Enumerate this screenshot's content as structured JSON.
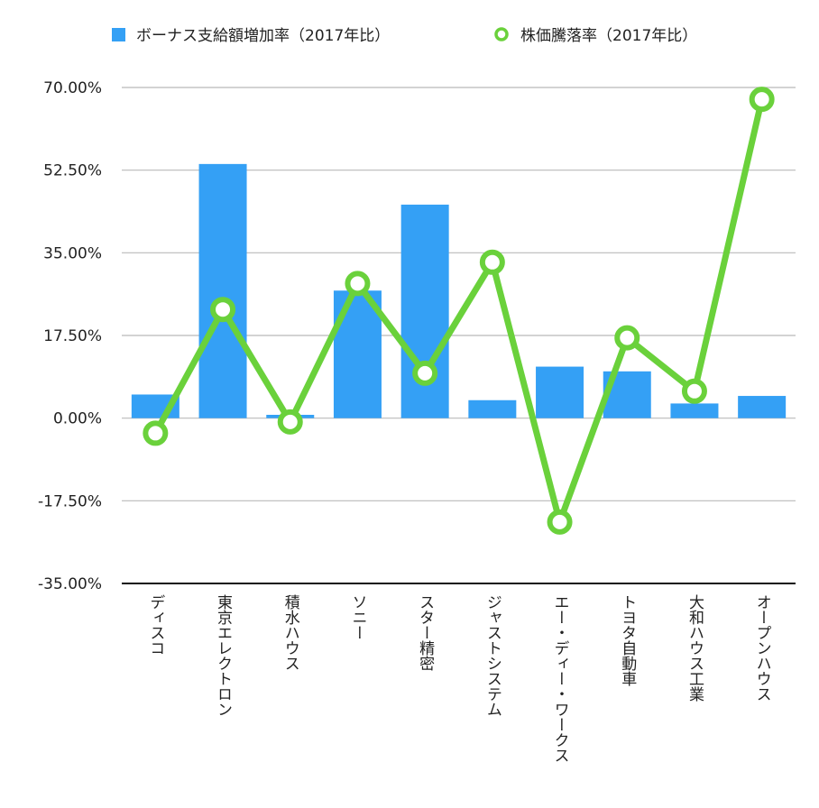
{
  "chart_data": {
    "type": "bar",
    "categories": [
      "ディスコ",
      "東京エレクトロン",
      "積水ハウス",
      "ソニー",
      "スター精密",
      "ジャストシステム",
      "エー・ディー・ワークス",
      "トヨタ自動車",
      "大和ハウス工業",
      "オープンハウス"
    ],
    "series": [
      {
        "name": "ボーナス支給額増加率（2017年比）",
        "type": "bar",
        "color": "#34a0f5",
        "values": [
          5.0,
          53.8,
          0.7,
          27.0,
          45.2,
          3.8,
          10.9,
          9.9,
          3.1,
          4.7
        ]
      },
      {
        "name": "株価騰落率（2017年比）",
        "type": "line",
        "color": "#6ad13b",
        "values": [
          -3.2,
          23.0,
          -0.8,
          28.5,
          9.5,
          33.0,
          -22.0,
          17.0,
          5.7,
          67.5
        ]
      }
    ],
    "yticks": [
      "70.00%",
      "52.50%",
      "35.00%",
      "17.50%",
      "0.00%",
      "-17.50%",
      "-35.00%"
    ],
    "ylim": [
      -35,
      70
    ],
    "ytick_step": 17.5,
    "grid": true,
    "legend_position": "top"
  }
}
